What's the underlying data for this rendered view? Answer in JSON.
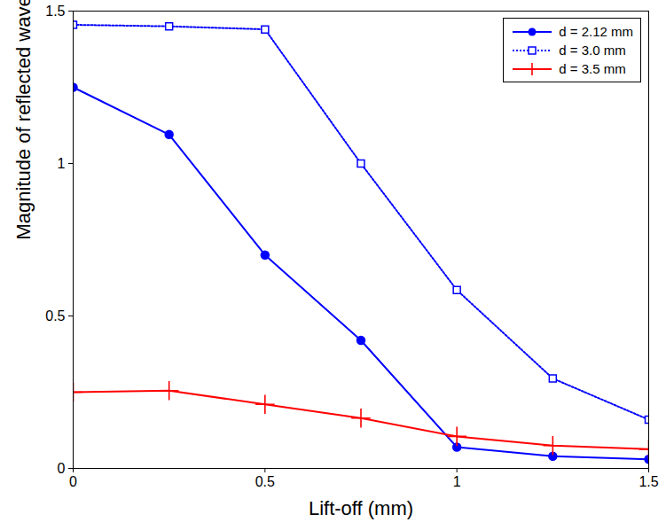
{
  "chart_data": {
    "type": "line",
    "xlabel": "Lift-off (mm)",
    "ylabel": "Magnitude of reflected waves (V)",
    "x": [
      0,
      0.25,
      0.5,
      0.75,
      1,
      1.25,
      1.5
    ],
    "series": [
      {
        "name": "d = 2.12 mm",
        "color": "#0000ff",
        "marker": "circle",
        "line_style": "solid",
        "values": [
          1.25,
          1.095,
          0.7,
          0.42,
          0.07,
          0.04,
          0.03
        ]
      },
      {
        "name": "d = 3.0 mm",
        "color": "#0000ff",
        "marker": "square",
        "line_style": "dotted",
        "values": [
          1.455,
          1.45,
          1.44,
          1.0,
          0.585,
          0.295,
          0.16
        ]
      },
      {
        "name": "d = 3.5 mm",
        "color": "#ff0000",
        "marker": "plus",
        "line_style": "solid",
        "values": [
          0.25,
          0.255,
          0.21,
          0.165,
          0.105,
          0.075,
          0.063
        ]
      }
    ],
    "xlim": [
      0,
      1.5
    ],
    "xticks": [
      0,
      0.5,
      1,
      1.5
    ],
    "ylim": [
      0,
      1.5
    ],
    "yticks": [
      0,
      0.5,
      1,
      1.5
    ],
    "grid": false,
    "legend": "top-right"
  }
}
